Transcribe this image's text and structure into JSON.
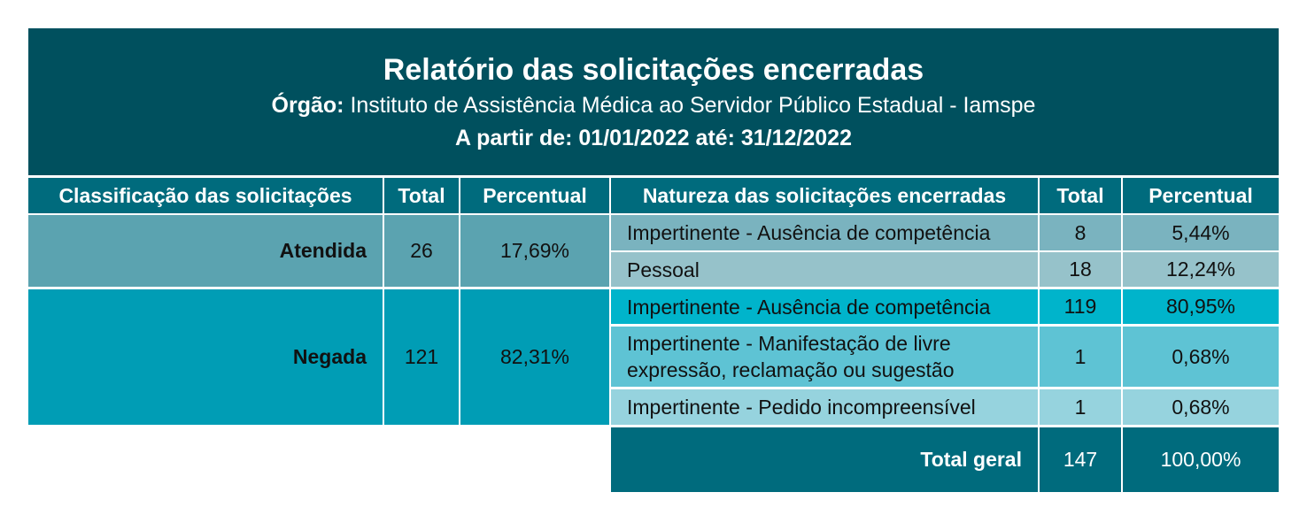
{
  "title": "Relatório das solicitações encerradas",
  "orgao_label": "Órgão:",
  "orgao": "Instituto de Assistência Médica ao Servidor Público Estadual - Iamspe",
  "periodo": "A partir de: 01/01/2022 até: 31/12/2022",
  "left_headers": [
    "Classificação das solicitações",
    "Total",
    "Percentual"
  ],
  "right_headers": [
    "Natureza das solicitações encerradas",
    "Total",
    "Percentual"
  ],
  "classificacao": [
    {
      "label": "Atendida",
      "total": "26",
      "percentual": "17,69%"
    },
    {
      "label": "Negada",
      "total": "121",
      "percentual": "82,31%"
    }
  ],
  "natureza": [
    {
      "label": "Impertinente - Ausência de competência",
      "total": "8",
      "percentual": "5,44%"
    },
    {
      "label": "Pessoal",
      "total": "18",
      "percentual": "12,24%"
    },
    {
      "label": "Impertinente - Ausência de competência",
      "total": "119",
      "percentual": "80,95%"
    },
    {
      "label": "Impertinente - Manifestação de livre expressão, reclamação ou sugestão",
      "total": "1",
      "percentual": "0,68%"
    },
    {
      "label": "Impertinente - Pedido incompreensível",
      "total": "1",
      "percentual": "0,68%"
    }
  ],
  "total_geral": {
    "label": "Total geral",
    "total": "147",
    "percentual": "100,00%"
  }
}
